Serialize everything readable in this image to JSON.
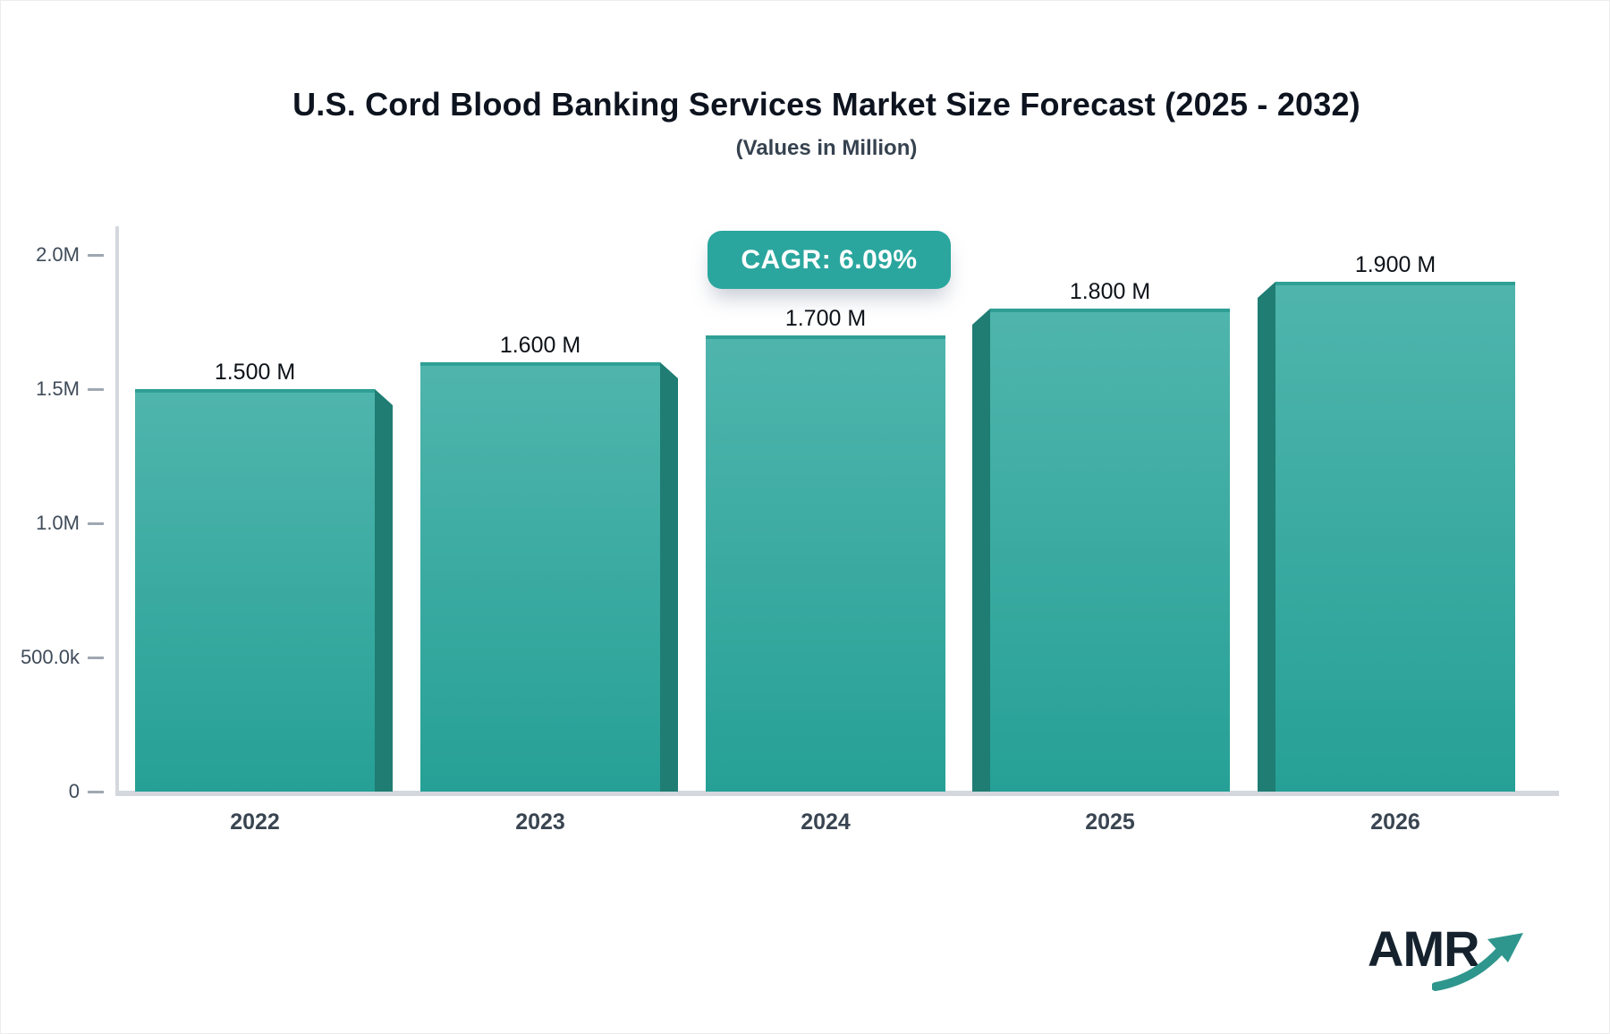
{
  "header": {
    "title": "U.S. Cord Blood Banking Services Market Size Forecast (2025 - 2032)",
    "subtitle": "(Values in Million)"
  },
  "cagr_badge": {
    "text": "CAGR: 6.09%",
    "bg_color": "#2aa69e",
    "text_color": "#ffffff"
  },
  "chart_data": {
    "type": "bar",
    "title": "U.S. Cord Blood Banking Services Market Size Forecast (2025 - 2032)",
    "subtitle": "(Values in Million)",
    "unit": "USD Million",
    "categories": [
      "2022",
      "2023",
      "2024",
      "2025",
      "2026"
    ],
    "values": [
      1.5,
      1.6,
      1.7,
      1.8,
      1.9
    ],
    "bar_labels": [
      "1.500 M",
      "1.600 M",
      "1.700 M",
      "1.800 M",
      "1.900 M"
    ],
    "cagr": "6.09%",
    "y_axis": {
      "tick_labels": [
        "2.0M",
        "1.5M",
        "1.0M",
        "500.0k",
        "0"
      ],
      "tick_values": [
        2.0,
        1.5,
        1.0,
        0.5,
        0
      ],
      "range": [
        0,
        2.0
      ]
    },
    "grid": false,
    "legend": false,
    "colors": {
      "bar_top": "#4fb5ac",
      "bar_bottom": "#26a096",
      "bar_edge": "#2f9f95",
      "bar_side": "#1f7d73",
      "axis": "#d4d8de",
      "tick": "#9fa8b2",
      "tick_text": "#3f4b59",
      "value_text": "#0d1218",
      "category_text": "#3a4552"
    }
  },
  "logo": {
    "text": "AMR",
    "text_color": "#15222d",
    "arrow_color": "#2f968d"
  }
}
